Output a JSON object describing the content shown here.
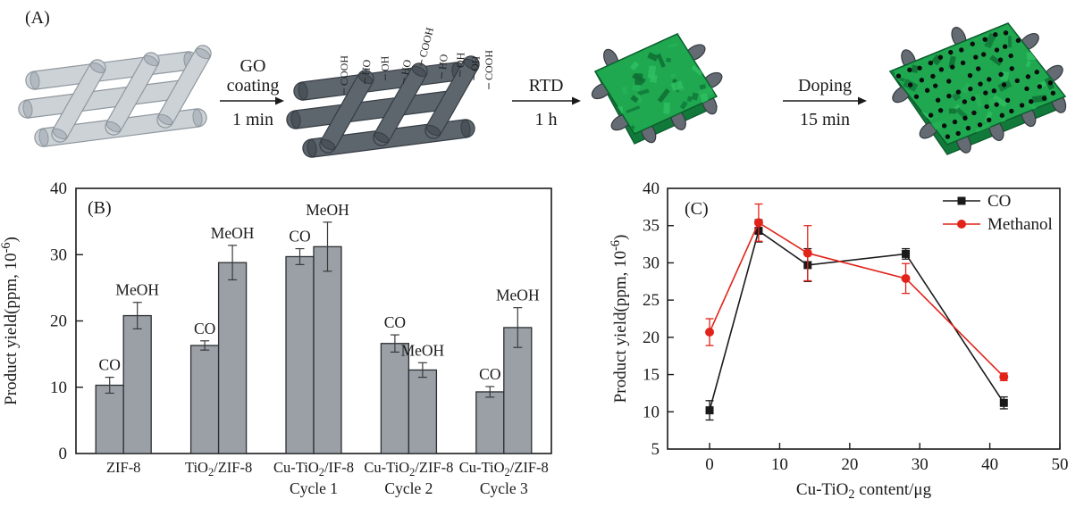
{
  "panel_a": {
    "label": "(A)",
    "structures": [
      "zif-8-scaffold",
      "go-coated-scaffold",
      "rtd-green-composite",
      "cu-doped-green-composite"
    ],
    "arrows": [
      {
        "top_lines": [
          "GO",
          "coating"
        ],
        "bottom": "1 min"
      },
      {
        "top_lines": [
          "RTD"
        ],
        "bottom": "1 h"
      },
      {
        "top_lines": [
          "Doping"
        ],
        "bottom": "15 min"
      }
    ],
    "functional_groups": [
      "COOH",
      "HO",
      "OH",
      "HO",
      "COOH",
      "HO",
      "OH",
      "OH",
      "COOH"
    ]
  },
  "chart_data": [
    {
      "panel_label": "(B)",
      "type": "bar",
      "ylabel": "Product yield(ppm, 10⁻⁶)",
      "ylim": [
        0,
        40
      ],
      "yticks": [
        0,
        10,
        20,
        30,
        40
      ],
      "categories": [
        "ZIF-8",
        "TiO₂/ZIF-8",
        "Cu-TiO₂/IF-8",
        "Cu-TiO₂/ZIF-8",
        "Cu-TiO₂/ZIF-8"
      ],
      "cycle_labels": [
        "",
        "",
        "Cycle 1",
        "Cycle 2",
        "Cycle 3"
      ],
      "series": [
        {
          "name": "CO",
          "values": [
            10.3,
            16.3,
            29.7,
            16.6,
            9.3
          ],
          "errors": [
            1.2,
            0.7,
            1.2,
            1.3,
            0.8
          ]
        },
        {
          "name": "MeOH",
          "values": [
            20.8,
            28.8,
            31.2,
            12.6,
            19.0
          ],
          "errors": [
            2.0,
            2.6,
            3.7,
            1.1,
            3.0
          ]
        }
      ],
      "grid": false,
      "legend": "none (bars annotated with CO / MeOH)"
    },
    {
      "panel_label": "(C)",
      "type": "line",
      "xlabel": "Cu-TiO₂ content/μg",
      "ylabel": "Product yield(ppm, 10⁻⁶)",
      "xlim": [
        -6,
        50
      ],
      "ylim": [
        5,
        40
      ],
      "xticks": [
        0,
        10,
        20,
        30,
        40,
        50
      ],
      "yticks": [
        5,
        10,
        15,
        20,
        25,
        30,
        35,
        40
      ],
      "x": [
        0,
        7,
        14,
        28,
        42
      ],
      "series": [
        {
          "name": "CO",
          "marker": "square",
          "color": "#1a1a1a",
          "values": [
            10.2,
            34.3,
            29.7,
            31.2,
            11.2
          ],
          "errors": [
            1.3,
            1.5,
            2.2,
            0.7,
            0.8
          ]
        },
        {
          "name": "Methanol",
          "marker": "circle",
          "color": "#e2231a",
          "values": [
            20.7,
            35.4,
            31.3,
            27.9,
            14.7
          ],
          "errors": [
            1.8,
            2.5,
            3.7,
            2.0,
            0.5
          ]
        }
      ],
      "legend": [
        "CO",
        "Methanol"
      ],
      "legend_position": "top-right inside"
    }
  ],
  "colors": {
    "text": "#1a1a1a",
    "axis": "#1a1a1a",
    "bar_fill": "#9aa0a6",
    "bar_edge": "#2b2f33",
    "error_bar": "#3a3a3a",
    "co_series": "#1a1a1a",
    "methanol_series": "#e2231a",
    "scaffold_light_body": "#cdd2d7",
    "scaffold_light_cap": "#b2b9c0",
    "scaffold_light_edge": "#8f979e",
    "scaffold_dark_body": "#5d656d",
    "scaffold_dark_cap": "#4b5259",
    "scaffold_dark_edge": "#363d44",
    "coating_green": "#1fa850",
    "coating_green_dark": "#117a3a",
    "coating_green_light": "#2fc062",
    "coating_green_edge": "#0b5e2d",
    "cylinder_cap_gray": "#646b73",
    "cylinder_cap_edge": "#343a40",
    "dopant_black": "#0d0d0d"
  }
}
